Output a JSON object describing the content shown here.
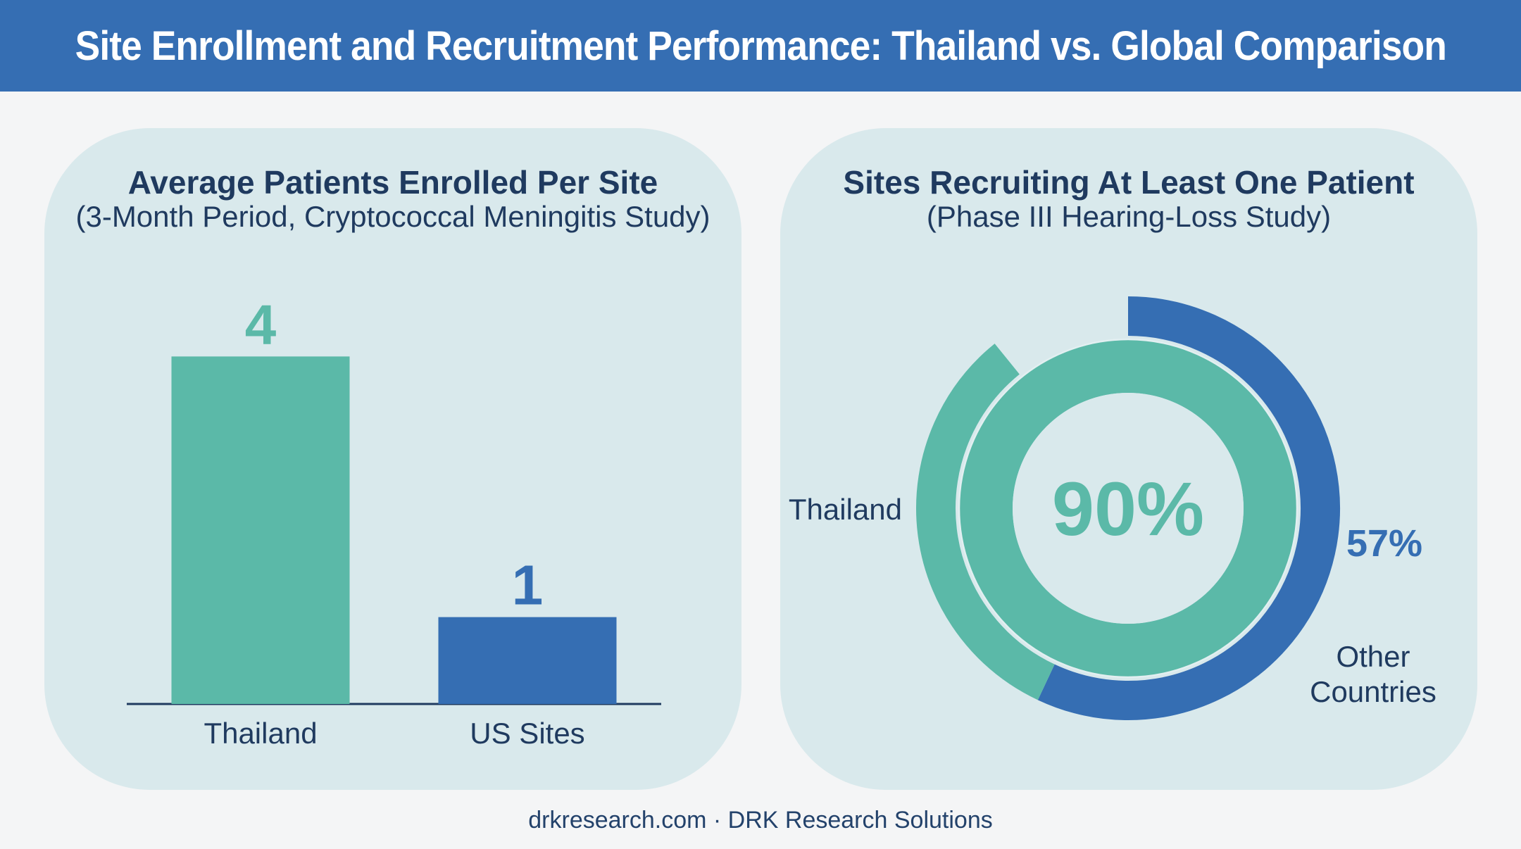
{
  "header": {
    "title": "Site Enrollment and Recruitment Performance: Thailand vs. Global Comparison"
  },
  "colors": {
    "header_bg": "#356eb3",
    "thailand": "#5bb9a8",
    "global": "#356eb3",
    "panel_bg": "#d9e9ec",
    "text_dark": "#1f3a5f"
  },
  "chart_data": [
    {
      "type": "bar",
      "title": "Average Patients Enrolled Per Site",
      "subtitle": "(3-Month Period, Cryptococcal Meningitis Study)",
      "categories": [
        "Thailand",
        "US Sites"
      ],
      "values": [
        4,
        1
      ],
      "data_labels": [
        "4",
        "1"
      ],
      "colors": [
        "#5bb9a8",
        "#356eb3"
      ],
      "ylim": [
        0,
        4.4
      ],
      "grid": false,
      "legend": "none"
    },
    {
      "type": "pie",
      "variant": "nested-rings",
      "title": "Sites Recruiting At Least One Patient",
      "subtitle": "(Phase III Hearing-Loss Study)",
      "series": [
        {
          "name": "Thailand",
          "value": 90,
          "label": "90%",
          "color": "#5bb9a8"
        },
        {
          "name": "Other Countries",
          "value": 57,
          "label": "57%",
          "color": "#356eb3"
        }
      ],
      "unit": "%",
      "legend": "none"
    }
  ],
  "footer": {
    "text": "drkresearch.com · DRK Research Solutions"
  }
}
